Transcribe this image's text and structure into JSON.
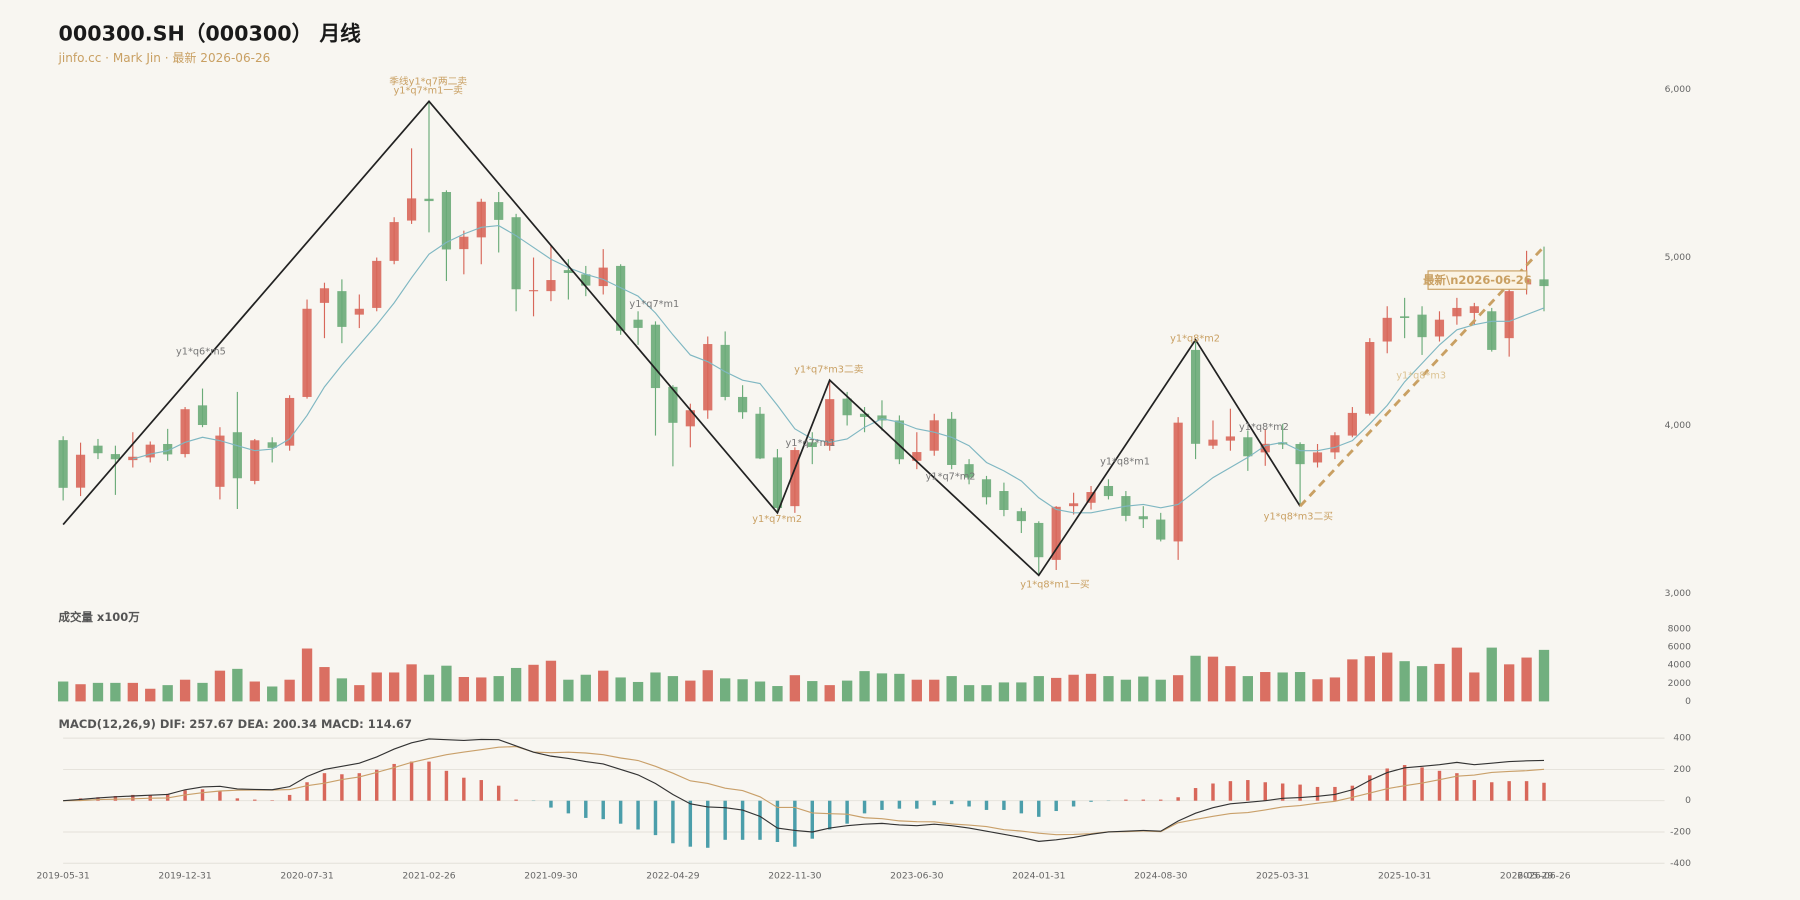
{
  "chart_data": [
    {
      "type": "candlestick",
      "title": "000300.SH（000300） 月线",
      "subtitle": "jinfo.cc · Mark Jin · 最新 2026-06-26",
      "categories": [
        "2019-05-31",
        null,
        null,
        null,
        null,
        null,
        null,
        "2019-12-31",
        null,
        null,
        null,
        null,
        null,
        null,
        "2020-07-31",
        null,
        null,
        null,
        null,
        null,
        null,
        "2021-02-26",
        null,
        null,
        null,
        null,
        null,
        null,
        "2021-09-30",
        null,
        null,
        null,
        null,
        null,
        null,
        "2022-04-29",
        null,
        null,
        null,
        null,
        null,
        null,
        "2022-11-30",
        null,
        null,
        null,
        null,
        null,
        null,
        "2023-06-30",
        null,
        null,
        null,
        null,
        null,
        null,
        "2024-01-31",
        null,
        null,
        null,
        null,
        null,
        null,
        "2024-08-30",
        null,
        null,
        null,
        null,
        null,
        null,
        "2025-03-31",
        null,
        null,
        null,
        null,
        null,
        null,
        "2025-10-31",
        null,
        null,
        null,
        null,
        null,
        null,
        "2026-05-29",
        "2026-06-26"
      ],
      "open": [
        3913,
        3630,
        3880,
        3830,
        3794,
        3810,
        3890,
        3830,
        4120,
        3635,
        3960,
        3670,
        3900,
        3880,
        4170,
        4730,
        4800,
        4660,
        4700,
        4980,
        5220,
        5350,
        5390,
        5050,
        5120,
        5330,
        5240,
        4800,
        4800,
        4925,
        4900,
        4830,
        4950,
        4630,
        4600,
        4230,
        3995,
        4090,
        4480,
        4170,
        4070,
        3810,
        3520,
        3900,
        3880,
        4160,
        4070,
        4060,
        4030,
        3790,
        3850,
        4040,
        3770,
        3680,
        3610,
        3490,
        3420,
        3200,
        3520,
        3540,
        3640,
        3580,
        3460,
        3440,
        3310,
        4450,
        3880,
        3910,
        3930,
        3840,
        3900,
        3890,
        3780,
        3840,
        3940,
        4070,
        4500,
        4650,
        4660,
        4530,
        4650,
        4670,
        4680,
        4520,
        4840,
        4870
      ],
      "high": [
        3936,
        3898,
        3920,
        3880,
        3960,
        3905,
        3980,
        4110,
        4220,
        3990,
        4200,
        3920,
        3930,
        4180,
        4750,
        4850,
        4870,
        4780,
        5000,
        5240,
        5650,
        5930,
        5400,
        5160,
        5350,
        5390,
        5260,
        5000,
        5070,
        4990,
        4950,
        5050,
        4960,
        4680,
        4620,
        4240,
        4130,
        4530,
        4560,
        4240,
        4110,
        3860,
        3870,
        3960,
        4270,
        4200,
        4110,
        4150,
        4060,
        3960,
        4070,
        4080,
        3800,
        3700,
        3660,
        3510,
        3430,
        3520,
        3600,
        3640,
        3680,
        3610,
        3520,
        3480,
        4050,
        4510,
        4030,
        4100,
        3970,
        3980,
        4010,
        3900,
        3890,
        3960,
        4110,
        4520,
        4710,
        4760,
        4710,
        4680,
        4760,
        4730,
        4700,
        4820,
        5040,
        5065
      ],
      "low": [
        3554,
        3580,
        3800,
        3587,
        3750,
        3780,
        3790,
        3810,
        3990,
        3560,
        3503,
        3650,
        3780,
        3850,
        4160,
        4520,
        4490,
        4580,
        4680,
        4960,
        5200,
        5150,
        4860,
        4900,
        4960,
        5030,
        4680,
        4650,
        4740,
        4750,
        4770,
        4780,
        4540,
        4480,
        3940,
        3757,
        3870,
        4040,
        4150,
        4040,
        3800,
        3480,
        3480,
        3770,
        3850,
        4000,
        3960,
        3970,
        3770,
        3740,
        3820,
        3740,
        3650,
        3530,
        3460,
        3360,
        3108,
        3140,
        3470,
        3500,
        3560,
        3430,
        3390,
        3310,
        3200,
        3800,
        3860,
        3850,
        3730,
        3760,
        3860,
        3520,
        3750,
        3800,
        3930,
        4060,
        4430,
        4520,
        4420,
        4500,
        4600,
        4600,
        4440,
        4410,
        4780,
        4680
      ],
      "close": [
        3629,
        3826,
        3835,
        3799,
        3814,
        3886,
        3828,
        4097,
        4003,
        3940,
        3686,
        3912,
        3867,
        4164,
        4695,
        4817,
        4587,
        4695,
        4980,
        5211,
        5352,
        5336,
        5048,
        5124,
        5332,
        5224,
        4811,
        4806,
        4866,
        4908,
        4833,
        4940,
        4564,
        4581,
        4223,
        4016,
        4091,
        4485,
        4170,
        4079,
        3804,
        3509,
        3854,
        3872,
        4157,
        4061,
        4051,
        4030,
        3799,
        3842,
        4031,
        3765,
        3690,
        3573,
        3497,
        3431,
        3216,
        3516,
        3537,
        3604,
        3580,
        3462,
        3442,
        3321,
        4017,
        3891,
        3916,
        3935,
        3817,
        3891,
        3887,
        3770,
        3840,
        3942,
        4075,
        4497,
        4641,
        4640,
        4526,
        4630,
        4700,
        4710,
        4450,
        4800,
        4870,
        4830
      ],
      "up_color": "#d8675a",
      "down_color": "#6aab78",
      "ylim": [
        3000,
        6000
      ],
      "yticks": [
        {
          "value": 3000,
          "label": "3,000"
        },
        {
          "value": 4000,
          "label": "4,000"
        },
        {
          "value": 5000,
          "label": "5,000"
        },
        {
          "value": 6000,
          "label": "6,000"
        }
      ],
      "grid": false,
      "ma": {
        "color": "#7fb7c2",
        "values": [
          null,
          null,
          null,
          null,
          3800,
          3830,
          3850,
          3900,
          3930,
          3910,
          3880,
          3850,
          3860,
          3920,
          4060,
          4230,
          4360,
          4480,
          4600,
          4730,
          4880,
          5020,
          5090,
          5140,
          5180,
          5190,
          5130,
          5060,
          4990,
          4940,
          4900,
          4870,
          4820,
          4770,
          4670,
          4540,
          4420,
          4380,
          4320,
          4270,
          4250,
          4120,
          3980,
          3920,
          3900,
          3920,
          3990,
          4040,
          4020,
          3980,
          3960,
          3930,
          3880,
          3780,
          3730,
          3670,
          3570,
          3500,
          3480,
          3480,
          3500,
          3520,
          3530,
          3510,
          3530,
          3610,
          3690,
          3750,
          3810,
          3880,
          3900,
          3850,
          3850,
          3870,
          3910,
          4010,
          4120,
          4260,
          4370,
          4480,
          4570,
          4600,
          4620,
          4620,
          4660,
          4700
        ]
      },
      "zigzag": {
        "color": "#222222",
        "values": [
          3410,
          null,
          null,
          null,
          null,
          null,
          null,
          null,
          null,
          null,
          null,
          null,
          null,
          null,
          null,
          null,
          null,
          null,
          null,
          null,
          null,
          5930,
          null,
          null,
          null,
          null,
          null,
          null,
          null,
          null,
          null,
          null,
          null,
          null,
          null,
          null,
          null,
          null,
          null,
          null,
          null,
          3480,
          null,
          null,
          4270,
          null,
          null,
          null,
          null,
          null,
          null,
          null,
          null,
          null,
          null,
          null,
          3108,
          null,
          null,
          null,
          null,
          null,
          null,
          null,
          null,
          4510,
          null,
          null,
          null,
          null,
          null,
          3520,
          null,
          null,
          null,
          null,
          null,
          null,
          null,
          null,
          null,
          null,
          null,
          null,
          null,
          null
        ]
      },
      "trend": {
        "color": "#c9a063",
        "values": [
          null,
          null,
          null,
          null,
          null,
          null,
          null,
          null,
          null,
          null,
          null,
          null,
          null,
          null,
          null,
          null,
          null,
          null,
          null,
          null,
          null,
          null,
          null,
          null,
          null,
          null,
          null,
          null,
          null,
          null,
          null,
          null,
          null,
          null,
          null,
          null,
          null,
          null,
          null,
          null,
          null,
          null,
          null,
          null,
          null,
          null,
          null,
          null,
          null,
          null,
          null,
          null,
          null,
          null,
          null,
          null,
          null,
          null,
          null,
          null,
          null,
          null,
          null,
          null,
          null,
          null,
          null,
          null,
          null,
          null,
          null,
          3520,
          null,
          null,
          null,
          null,
          null,
          null,
          null,
          null,
          null,
          null,
          null,
          null,
          null,
          5065
        ]
      },
      "annotations": [
        {
          "text": "季线y1*q7两二卖",
          "color": "#c9a063"
        },
        {
          "text": "y1*q7*m1一卖",
          "color": "#c9a063"
        },
        {
          "text": "y1*q6*m5",
          "color": "#777777"
        },
        {
          "text": "y1*q7*m1",
          "color": "#777777"
        },
        {
          "text": "y1*q7*m3二卖",
          "color": "#c9a063"
        },
        {
          "text": "y1*q7*m2",
          "color": "#c9a063"
        },
        {
          "text": "y1*q7*m1",
          "color": "#777777"
        },
        {
          "text": "y1*q7*m2",
          "color": "#777777"
        },
        {
          "text": "y1*q8*m1一买",
          "color": "#c9a063"
        },
        {
          "text": "y1*q8*m1",
          "color": "#777777"
        },
        {
          "text": "y1*q8*m2",
          "color": "#c9a063"
        },
        {
          "text": "y1*q8*m2",
          "color": "#777777"
        },
        {
          "text": "y1*q8*m3二买",
          "color": "#c9a063"
        },
        {
          "text": "y1*q8*m3",
          "color": "#dcc393"
        }
      ],
      "latest_label": "最新\\n2026-06-26"
    },
    {
      "type": "bar",
      "title": "成交量 x100万",
      "values": [
        2200,
        1900,
        2050,
        2050,
        2050,
        1400,
        1800,
        2400,
        2050,
        3400,
        3600,
        2200,
        1650,
        2400,
        5850,
        3800,
        2550,
        1800,
        3200,
        3200,
        4100,
        2950,
        3950,
        2700,
        2650,
        2800,
        3700,
        4050,
        4500,
        2400,
        2950,
        3400,
        2650,
        2150,
        3200,
        2800,
        2300,
        3450,
        2550,
        2450,
        2200,
        1700,
        2900,
        2250,
        1800,
        2300,
        3350,
        3100,
        3050,
        2400,
        2400,
        2800,
        1800,
        1800,
        2100,
        2100,
        2800,
        2600,
        2950,
        3050,
        2800,
        2400,
        2750,
        2400,
        2900,
        5050,
        4950,
        3900,
        2800,
        3250,
        3200,
        3250,
        2450,
        2650,
        4650,
        5000,
        5400,
        4450,
        3900,
        4150,
        5950,
        3200,
        5950,
        4100,
        4850,
        5700
      ],
      "ylim": [
        0,
        8000
      ],
      "yticks": [
        0,
        2000,
        4000,
        6000,
        8000
      ],
      "grid": false
    },
    {
      "type": "macd",
      "title": "MACD(12,26,9) DIF: 257.67 DEA: 200.34 MACD: 114.67",
      "macd": {
        "pos_color": "#d8675a",
        "neg_color": "#4b9eaa",
        "values": [
          0,
          15,
          22,
          30,
          37,
          37,
          44,
          66,
          73,
          59,
          15,
          7,
          3,
          37,
          118,
          176,
          169,
          176,
          198,
          235,
          250,
          250,
          191,
          147,
          132,
          96,
          7,
          -2,
          -44,
          -81,
          -110,
          -118,
          -147,
          -184,
          -220,
          -272,
          -294,
          -301,
          -250,
          -250,
          -250,
          -264,
          -294,
          -243,
          -184,
          -147,
          -81,
          -59,
          -51,
          -51,
          -29,
          -22,
          -37,
          -59,
          -59,
          -81,
          -103,
          -66,
          -37,
          -7,
          -2,
          7,
          7,
          7,
          22,
          81,
          110,
          125,
          132,
          118,
          110,
          103,
          88,
          88,
          96,
          162,
          206,
          228,
          213,
          191,
          176,
          132,
          118,
          125,
          125,
          114.67
        ]
      },
      "dif": {
        "color": "#333333",
        "values": [
          0,
          8,
          18,
          25,
          30,
          35,
          40,
          70,
          88,
          92,
          75,
          72,
          70,
          90,
          155,
          200,
          220,
          240,
          280,
          330,
          370,
          395,
          390,
          385,
          392,
          390,
          350,
          310,
          285,
          270,
          250,
          235,
          200,
          165,
          110,
          40,
          -20,
          -40,
          -45,
          -60,
          -100,
          -175,
          -190,
          -200,
          -175,
          -160,
          -150,
          -145,
          -155,
          -160,
          -150,
          -160,
          -175,
          -195,
          -215,
          -235,
          -260,
          -250,
          -235,
          -215,
          -200,
          -195,
          -190,
          -195,
          -130,
          -80,
          -45,
          -20,
          -10,
          0,
          15,
          20,
          28,
          40,
          70,
          130,
          180,
          210,
          220,
          230,
          245,
          230,
          240,
          250,
          255,
          257.67
        ]
      },
      "dea": {
        "color": "#c9a06a",
        "values": [
          0,
          1,
          7,
          10,
          12,
          16,
          18,
          37,
          51,
          62,
          67,
          68,
          68,
          71,
          96,
          112,
          135,
          152,
          181,
          212,
          245,
          270,
          294,
          311,
          326,
          342,
          346,
          311,
          307,
          310,
          305,
          294,
          273,
          257,
          220,
          176,
          127,
          110,
          80,
          65,
          25,
          -43,
          -43,
          -78,
          -83,
          -86,
          -109,
          -115,
          -129,
          -134,
          -135,
          -149,
          -156,
          -165,
          -185,
          -194,
          -208,
          -217,
          -216,
          -211,
          -199,
          -198,
          -193,
          -198,
          -141,
          -120,
          -100,
          -82,
          -76,
          -59,
          -40,
          -31,
          -16,
          -4,
          22,
          49,
          77,
          96,
          113,
          134,
          157,
          164,
          181,
          187,
          192,
          200.34
        ]
      },
      "ylim": [
        -400,
        400
      ],
      "yticks": [
        400,
        200,
        0,
        -200,
        -400
      ],
      "grid": true
    }
  ]
}
